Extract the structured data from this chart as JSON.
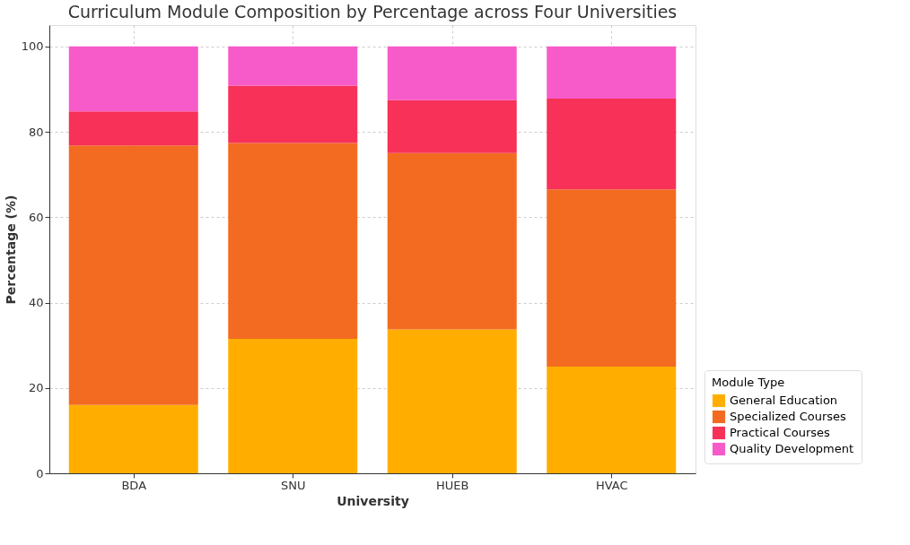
{
  "chart_data": {
    "type": "bar",
    "title": "Curriculum Module Composition by Percentage across Four Universities",
    "xlabel": "University",
    "ylabel": "Percentage (%)",
    "legend_title": "Module Type",
    "categories": [
      "BDA",
      "SNU",
      "HUEB",
      "HVAC"
    ],
    "stacked": true,
    "series": [
      {
        "name": "General Education",
        "color": "#ffae00",
        "values": [
          16.0,
          31.5,
          33.7,
          25.0
        ]
      },
      {
        "name": "Specialized Courses",
        "color": "#f26b21",
        "values": [
          60.8,
          45.9,
          41.3,
          41.5
        ]
      },
      {
        "name": "Practical Courses",
        "color": "#f73157",
        "values": [
          8.0,
          13.4,
          12.4,
          21.3
        ]
      },
      {
        "name": "Quality Development",
        "color": "#f75bc9",
        "values": [
          15.2,
          9.2,
          12.6,
          12.2
        ]
      }
    ],
    "ylim": [
      0,
      105
    ],
    "yticks": [
      0,
      20,
      40,
      60,
      80,
      100
    ],
    "grid": true,
    "legend": "bottom right"
  }
}
